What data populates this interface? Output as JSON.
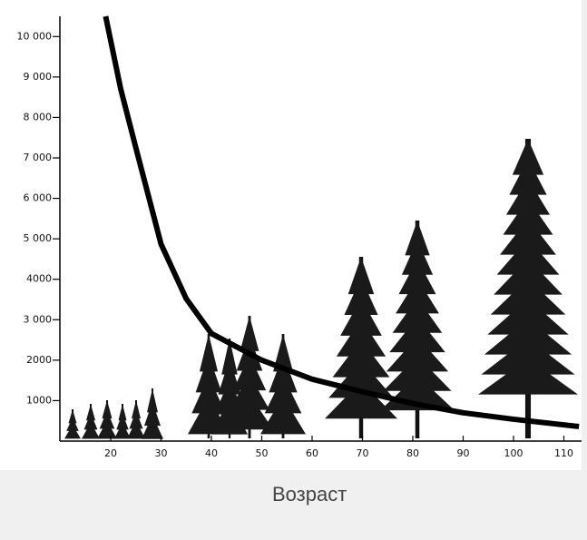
{
  "chart_data": {
    "type": "line",
    "x_label": "Возраст",
    "x": [
      19,
      22,
      25,
      30,
      35,
      40,
      50,
      60,
      70,
      80,
      90,
      100,
      113
    ],
    "values": [
      10500,
      8700,
      7250,
      4870,
      3520,
      2660,
      2000,
      1530,
      1220,
      930,
      700,
      540,
      360
    ],
    "color": "#000000",
    "xlim": [
      10,
      113
    ],
    "xticks": [
      20,
      30,
      40,
      50,
      60,
      70,
      80,
      90,
      100,
      110
    ],
    "ylim": [
      0,
      10500
    ],
    "yticks": [
      {
        "value": 1000,
        "label": "1000"
      },
      {
        "value": 2000,
        "label": "2000"
      },
      {
        "value": 3000,
        "label": "3 000"
      },
      {
        "value": 4000,
        "label": "4000"
      },
      {
        "value": 5000,
        "label": "5 000"
      },
      {
        "value": 6000,
        "label": "6 000"
      },
      {
        "value": 7000,
        "label": "7 000"
      },
      {
        "value": 8000,
        "label": "8 000"
      },
      {
        "value": 9000,
        "label": "9 000"
      },
      {
        "value": 10000,
        "label": "10 000"
      }
    ]
  }
}
